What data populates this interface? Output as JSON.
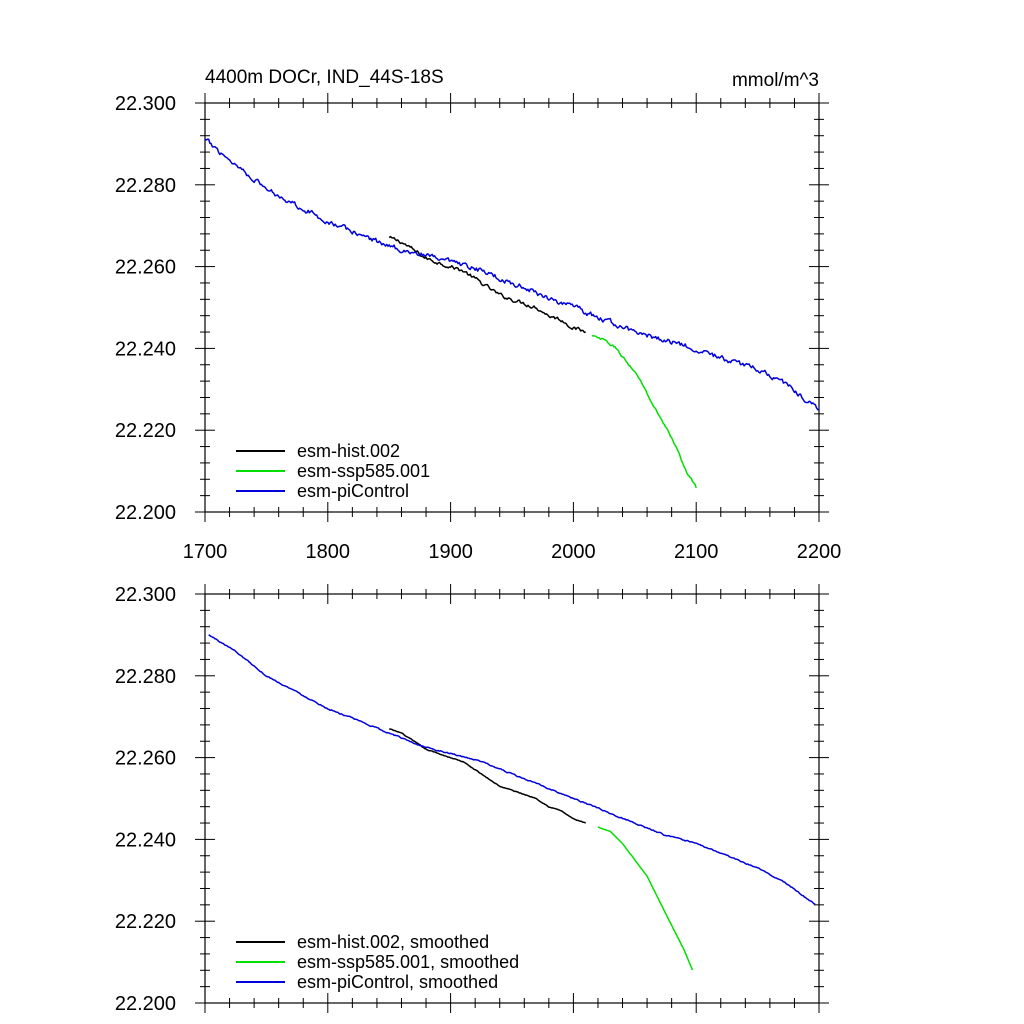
{
  "chart_data": [
    {
      "type": "line",
      "title": "4400m DOCr, IND_44S-18S",
      "units": "mmol/m^3",
      "xlim": [
        1700,
        2200
      ],
      "ylim": [
        22.2,
        22.3
      ],
      "x_ticks": [
        "1700",
        "1800",
        "1900",
        "2000",
        "2100",
        "2200"
      ],
      "y_ticks": [
        "22.200",
        "22.220",
        "22.240",
        "22.260",
        "22.280",
        "22.300"
      ],
      "grid": false,
      "legend_position": "bottom-left",
      "series": [
        {
          "name": "esm-hist.002",
          "color": "#000000",
          "noise": 0.0009,
          "points": [
            [
              1850,
              22.267
            ],
            [
              1860,
              22.266
            ],
            [
              1870,
              22.264
            ],
            [
              1880,
              22.262
            ],
            [
              1890,
              22.261
            ],
            [
              1900,
              22.26
            ],
            [
              1910,
              22.259
            ],
            [
              1920,
              22.257
            ],
            [
              1930,
              22.255
            ],
            [
              1940,
              22.253
            ],
            [
              1950,
              22.252
            ],
            [
              1960,
              22.251
            ],
            [
              1970,
              22.25
            ],
            [
              1980,
              22.248
            ],
            [
              1990,
              22.247
            ],
            [
              2000,
              22.245
            ],
            [
              2010,
              22.244
            ]
          ]
        },
        {
          "name": "esm-ssp585.001",
          "color": "#00e000",
          "noise": 0.0006,
          "points": [
            [
              2015,
              22.243
            ],
            [
              2025,
              22.242
            ],
            [
              2035,
              22.24
            ],
            [
              2045,
              22.236
            ],
            [
              2055,
              22.232
            ],
            [
              2065,
              22.226
            ],
            [
              2075,
              22.221
            ],
            [
              2085,
              22.215
            ],
            [
              2090,
              22.211
            ],
            [
              2100,
              22.206
            ]
          ]
        },
        {
          "name": "esm-piControl",
          "color": "#0000dd",
          "noise": 0.0012,
          "points": [
            [
              1700,
              22.291
            ],
            [
              1725,
              22.285
            ],
            [
              1750,
              22.279
            ],
            [
              1775,
              22.275
            ],
            [
              1800,
              22.271
            ],
            [
              1825,
              22.268
            ],
            [
              1850,
              22.265
            ],
            [
              1875,
              22.263
            ],
            [
              1900,
              22.261
            ],
            [
              1925,
              22.259
            ],
            [
              1950,
              22.256
            ],
            [
              1975,
              22.253
            ],
            [
              2000,
              22.25
            ],
            [
              2025,
              22.247
            ],
            [
              2050,
              22.244
            ],
            [
              2075,
              22.242
            ],
            [
              2100,
              22.24
            ],
            [
              2125,
              22.237
            ],
            [
              2150,
              22.235
            ],
            [
              2175,
              22.231
            ],
            [
              2200,
              22.225
            ]
          ]
        }
      ]
    },
    {
      "type": "line",
      "xlim": [
        1700,
        2200
      ],
      "ylim": [
        22.2,
        22.3
      ],
      "y_ticks": [
        "22.200",
        "22.220",
        "22.240",
        "22.260",
        "22.280",
        "22.300"
      ],
      "grid": false,
      "legend_position": "bottom-left",
      "series": [
        {
          "name": "esm-hist.002, smoothed",
          "color": "#000000",
          "noise": 0.0002,
          "points": [
            [
              1850,
              22.267
            ],
            [
              1860,
              22.266
            ],
            [
              1870,
              22.264
            ],
            [
              1880,
              22.262
            ],
            [
              1890,
              22.261
            ],
            [
              1900,
              22.26
            ],
            [
              1910,
              22.259
            ],
            [
              1920,
              22.257
            ],
            [
              1930,
              22.255
            ],
            [
              1940,
              22.253
            ],
            [
              1950,
              22.252
            ],
            [
              1960,
              22.251
            ],
            [
              1970,
              22.25
            ],
            [
              1980,
              22.248
            ],
            [
              1990,
              22.247
            ],
            [
              2000,
              22.245
            ],
            [
              2010,
              22.244
            ]
          ]
        },
        {
          "name": "esm-ssp585.001, smoothed",
          "color": "#00e000",
          "noise": 0.0001,
          "points": [
            [
              2020,
              22.243
            ],
            [
              2030,
              22.242
            ],
            [
              2040,
              22.239
            ],
            [
              2050,
              22.235
            ],
            [
              2060,
              22.231
            ],
            [
              2070,
              22.225
            ],
            [
              2080,
              22.219
            ],
            [
              2090,
              22.213
            ],
            [
              2097,
              22.208
            ]
          ]
        },
        {
          "name": "esm-piControl, smoothed",
          "color": "#0000dd",
          "noise": 0.0003,
          "points": [
            [
              1703,
              22.29
            ],
            [
              1725,
              22.286
            ],
            [
              1750,
              22.28
            ],
            [
              1775,
              22.276
            ],
            [
              1800,
              22.272
            ],
            [
              1825,
              22.269
            ],
            [
              1850,
              22.266
            ],
            [
              1875,
              22.263
            ],
            [
              1900,
              22.261
            ],
            [
              1925,
              22.259
            ],
            [
              1950,
              22.256
            ],
            [
              1975,
              22.253
            ],
            [
              2000,
              22.25
            ],
            [
              2025,
              22.247
            ],
            [
              2050,
              22.244
            ],
            [
              2075,
              22.241
            ],
            [
              2100,
              22.239
            ],
            [
              2125,
              22.236
            ],
            [
              2150,
              22.233
            ],
            [
              2175,
              22.229
            ],
            [
              2197,
              22.224
            ]
          ]
        }
      ]
    }
  ]
}
